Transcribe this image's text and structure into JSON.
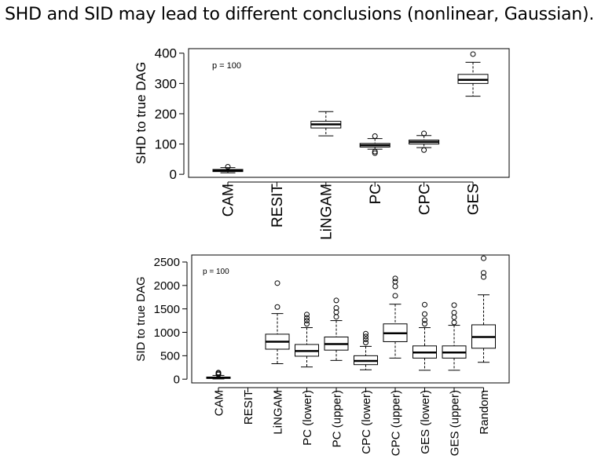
{
  "slide": {
    "title": "SHD and SID may lead to different conclusions (nonlinear, Gaussian)."
  },
  "chart_data": [
    {
      "type": "box",
      "ylabel": "SHD to true DAG",
      "annotation": "p = 100",
      "ylim": [
        -10,
        415
      ],
      "yticks": [
        0,
        100,
        200,
        300,
        400
      ],
      "categories": [
        "CAM",
        "RESIT",
        "LiNGAM",
        "PC",
        "CPC",
        "GES"
      ],
      "boxes": [
        {
          "category": "CAM",
          "min": 5,
          "q1": 9,
          "median": 12,
          "q3": 16,
          "max": 22,
          "outliers": [
            25
          ]
        },
        {
          "category": "RESIT",
          "min": null,
          "q1": null,
          "median": null,
          "q3": null,
          "max": null,
          "outliers": []
        },
        {
          "category": "LiNGAM",
          "min": 127,
          "q1": 153,
          "median": 165,
          "q3": 175,
          "max": 207,
          "outliers": []
        },
        {
          "category": "PC",
          "min": 83,
          "q1": 90,
          "median": 96,
          "q3": 102,
          "max": 118,
          "outliers": [
            126,
            75,
            70
          ]
        },
        {
          "category": "CPC",
          "min": 88,
          "q1": 100,
          "median": 107,
          "q3": 113,
          "max": 128,
          "outliers": [
            135,
            80
          ]
        },
        {
          "category": "GES",
          "min": 258,
          "q1": 300,
          "median": 312,
          "q3": 330,
          "max": 370,
          "outliers": [
            397
          ]
        }
      ]
    },
    {
      "type": "box",
      "ylabel": "SID to true DAG",
      "annotation": "p = 100",
      "ylim": [
        -80,
        2650
      ],
      "yticks": [
        0,
        500,
        1000,
        1500,
        2000,
        2500
      ],
      "categories": [
        "CAM",
        "RESIT",
        "LiNGAM",
        "PC (lower)",
        "PC (upper)",
        "CPC (lower)",
        "CPC (upper)",
        "GES (lower)",
        "GES (upper)",
        "Random"
      ],
      "boxes": [
        {
          "category": "CAM",
          "min": 5,
          "q1": 15,
          "median": 30,
          "q3": 45,
          "max": 80,
          "outliers": [
            100,
            120,
            140
          ]
        },
        {
          "category": "RESIT",
          "min": null,
          "q1": null,
          "median": null,
          "q3": null,
          "max": null,
          "outliers": []
        },
        {
          "category": "LiNGAM",
          "min": 330,
          "q1": 640,
          "median": 800,
          "q3": 960,
          "max": 1400,
          "outliers": [
            1540,
            2050
          ]
        },
        {
          "category": "PC (lower)",
          "min": 260,
          "q1": 490,
          "median": 600,
          "q3": 740,
          "max": 1100,
          "outliers": [
            1180,
            1250,
            1310,
            1380
          ]
        },
        {
          "category": "PC (upper)",
          "min": 400,
          "q1": 620,
          "median": 750,
          "q3": 900,
          "max": 1250,
          "outliers": [
            1330,
            1430,
            1520,
            1680
          ]
        },
        {
          "category": "CPC (lower)",
          "min": 200,
          "q1": 310,
          "median": 390,
          "q3": 500,
          "max": 700,
          "outliers": [
            780,
            850,
            910,
            970
          ]
        },
        {
          "category": "CPC (upper)",
          "min": 450,
          "q1": 800,
          "median": 980,
          "q3": 1180,
          "max": 1600,
          "outliers": [
            1780,
            1980,
            2080,
            2150
          ]
        },
        {
          "category": "GES (lower)",
          "min": 190,
          "q1": 450,
          "median": 570,
          "q3": 710,
          "max": 1100,
          "outliers": [
            1180,
            1260,
            1390,
            1590
          ]
        },
        {
          "category": "GES (upper)",
          "min": 190,
          "q1": 450,
          "median": 570,
          "q3": 710,
          "max": 1150,
          "outliers": [
            1210,
            1320,
            1420,
            1580
          ]
        },
        {
          "category": "Random",
          "min": 360,
          "q1": 660,
          "median": 900,
          "q3": 1160,
          "max": 1800,
          "outliers": [
            2180,
            2270,
            2580
          ]
        }
      ]
    }
  ]
}
